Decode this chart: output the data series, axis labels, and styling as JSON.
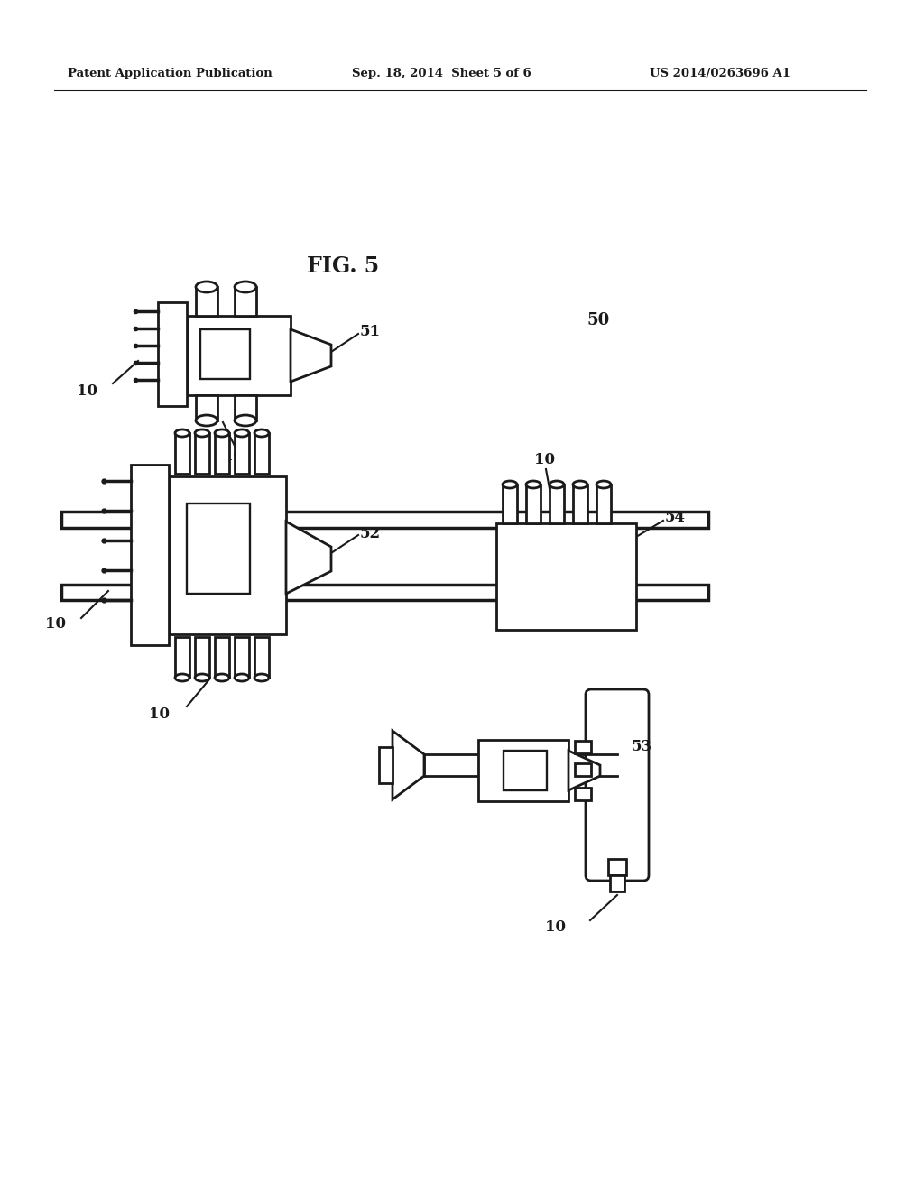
{
  "bg_color": "#ffffff",
  "lc": "#1a1a1a",
  "lw": 2.0,
  "header_left": "Patent Application Publication",
  "header_center": "Sep. 18, 2014  Sheet 5 of 6",
  "header_right": "US 2014/0263696 A1",
  "fig_label": "FIG. 5"
}
